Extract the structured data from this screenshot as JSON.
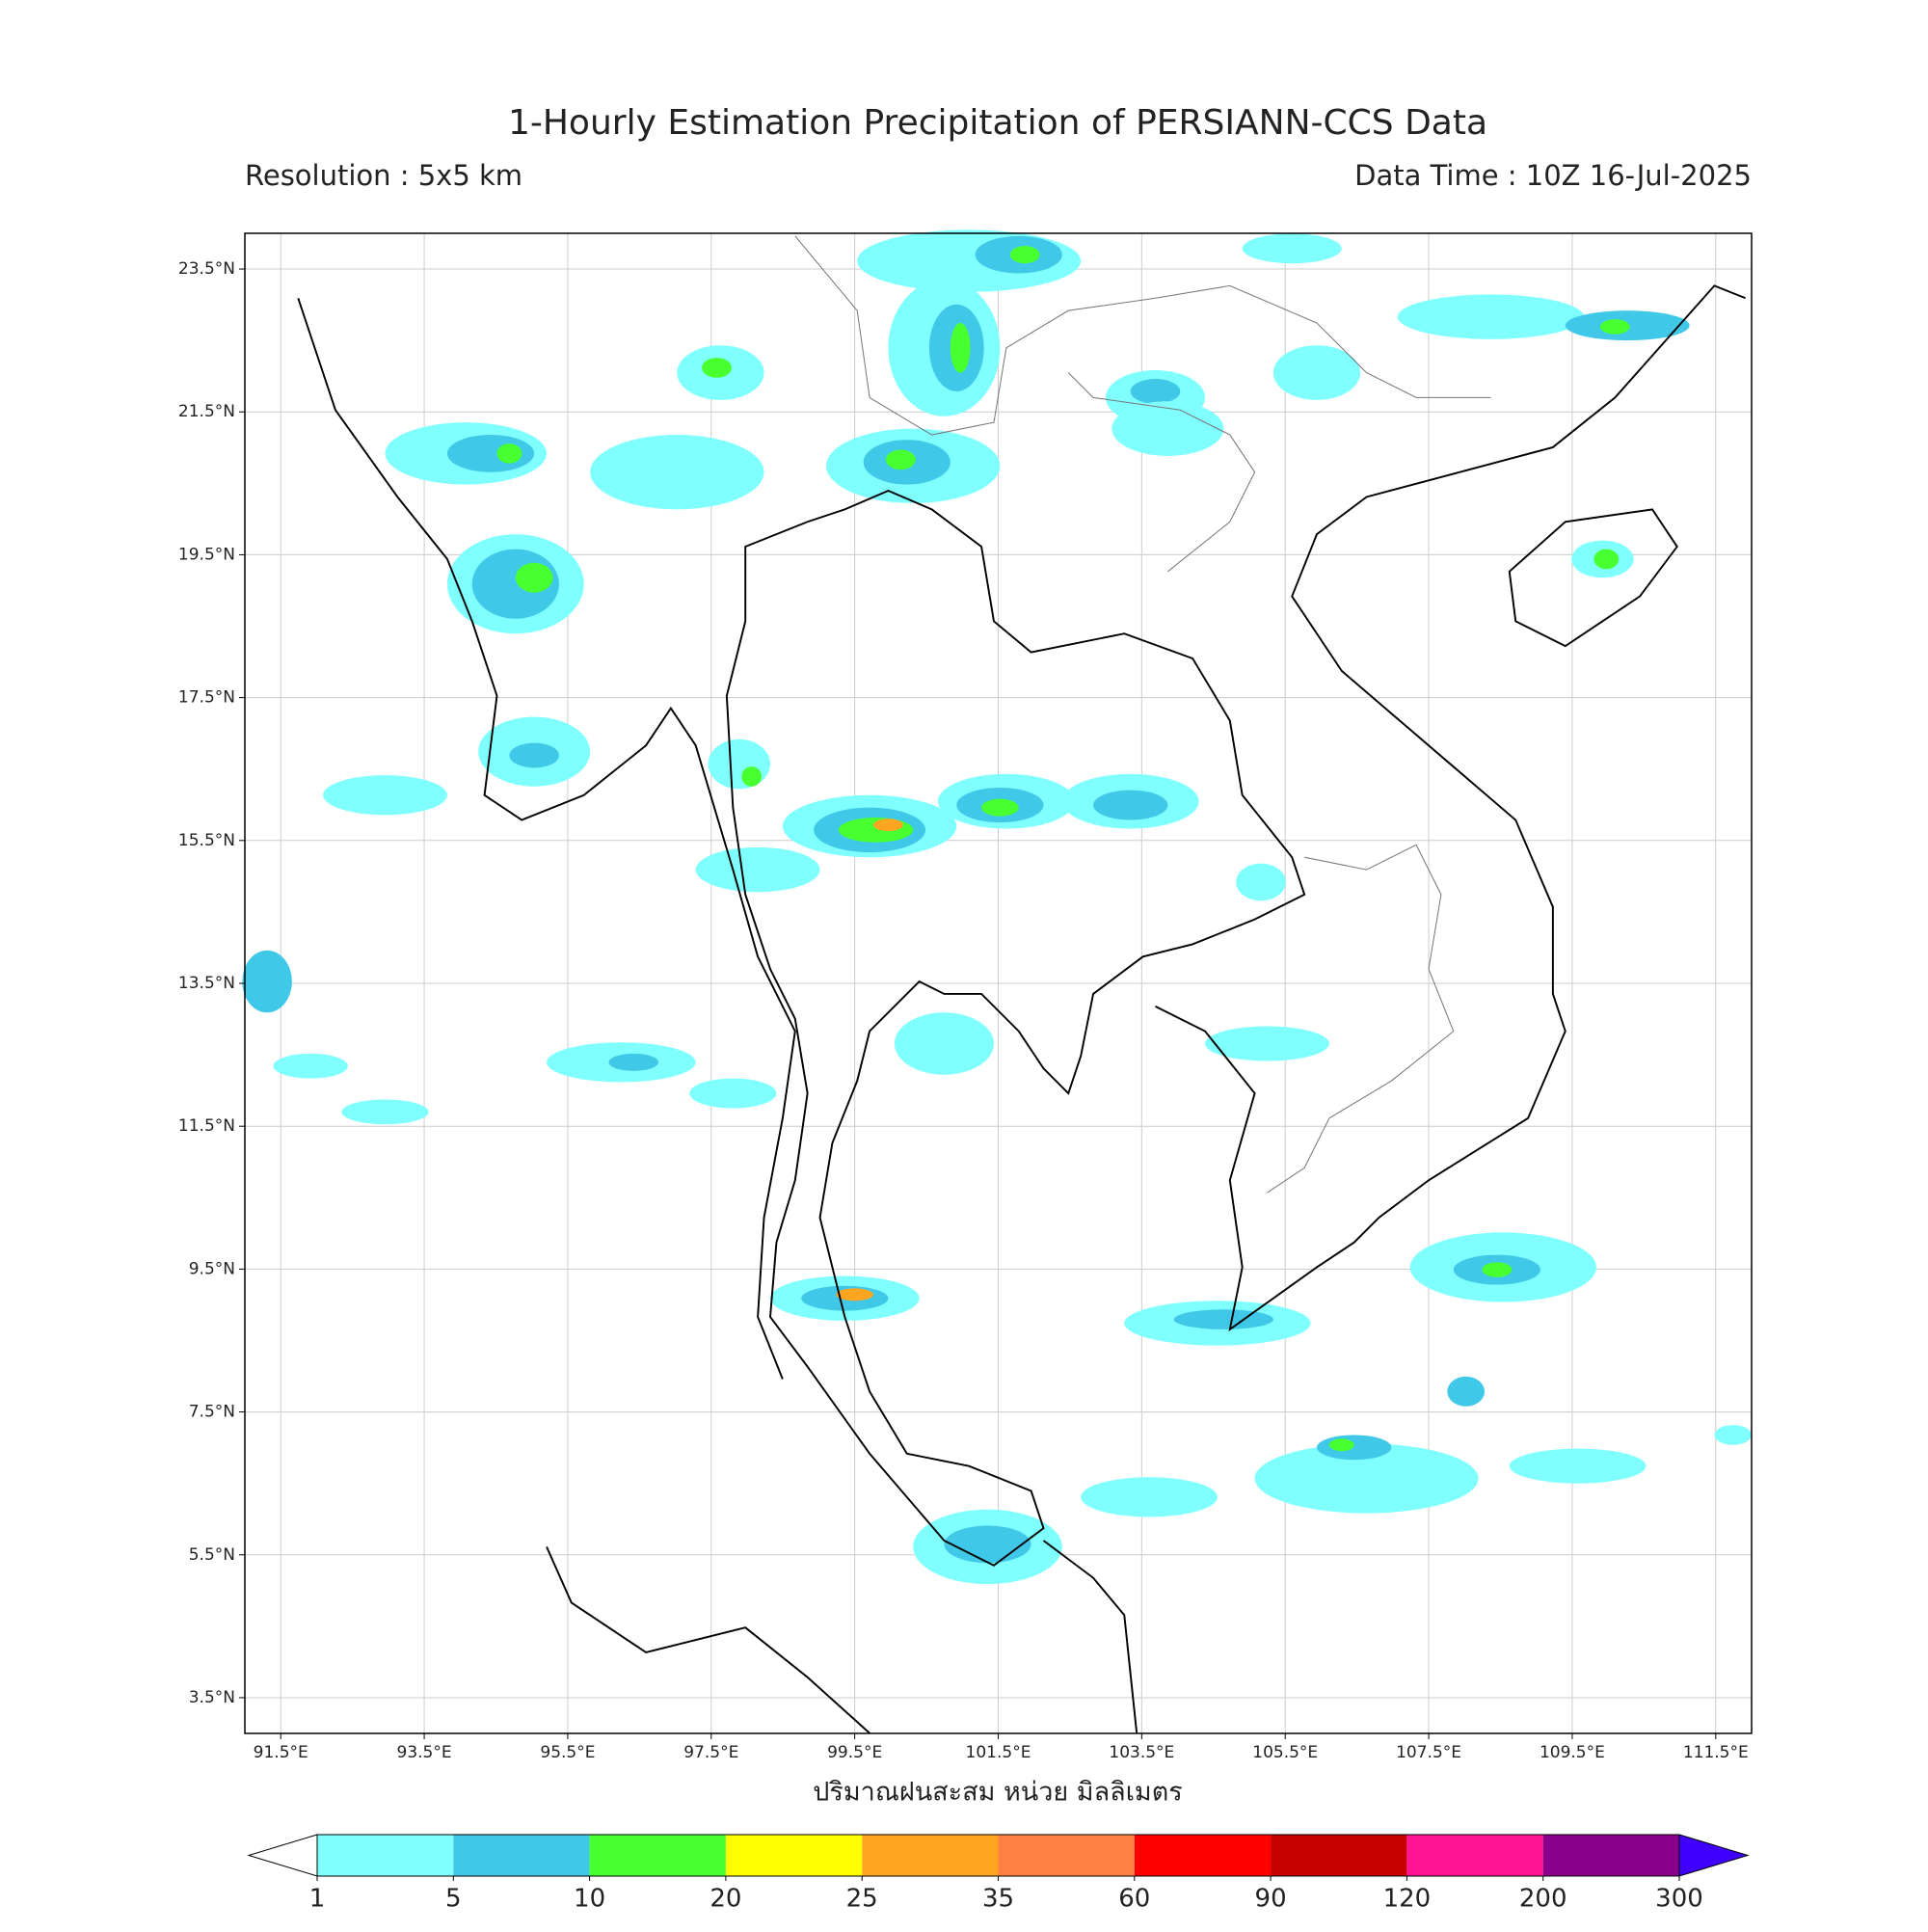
{
  "title": "1-Hourly Estimation Precipitation of PERSIANN-CCS Data",
  "subtitle_left": "Resolution : 5x5 km",
  "subtitle_right": "Data Time : 10Z 16-Jul-2025",
  "map": {
    "xlim": [
      91,
      112
    ],
    "ylim": [
      3,
      24
    ],
    "xticks": [
      {
        "value": 91.5,
        "label": "91.5°E"
      },
      {
        "value": 93.5,
        "label": "93.5°E"
      },
      {
        "value": 95.5,
        "label": "95.5°E"
      },
      {
        "value": 97.5,
        "label": "97.5°E"
      },
      {
        "value": 99.5,
        "label": "99.5°E"
      },
      {
        "value": 101.5,
        "label": "101.5°E"
      },
      {
        "value": 103.5,
        "label": "103.5°E"
      },
      {
        "value": 105.5,
        "label": "105.5°E"
      },
      {
        "value": 107.5,
        "label": "107.5°E"
      },
      {
        "value": 109.5,
        "label": "109.5°E"
      },
      {
        "value": 111.5,
        "label": "111.5°E"
      }
    ],
    "yticks": [
      {
        "value": 23.5,
        "label": "23.5°N"
      },
      {
        "value": 21.5,
        "label": "21.5°N"
      },
      {
        "value": 19.5,
        "label": "19.5°N"
      },
      {
        "value": 17.5,
        "label": "17.5°N"
      },
      {
        "value": 15.5,
        "label": "15.5°N"
      },
      {
        "value": 13.5,
        "label": "13.5°N"
      },
      {
        "value": 11.5,
        "label": "11.5°N"
      },
      {
        "value": 9.5,
        "label": "9.5°N"
      },
      {
        "value": 7.5,
        "label": "7.5°N"
      },
      {
        "value": 5.5,
        "label": "5.5°N"
      },
      {
        "value": 3.5,
        "label": "3.5°N"
      }
    ],
    "xlabel": "ปริมาณฝนสะสม หน่วย มิลลิเมตร",
    "grid": true
  },
  "colorbar": {
    "bounds": [
      1,
      5,
      10,
      20,
      25,
      35,
      60,
      90,
      120,
      200,
      300
    ],
    "colors": [
      "#80ffff",
      "#40c8e8",
      "#48ff30",
      "#ffff00",
      "#ffa520",
      "#ff8040",
      "#ff0000",
      "#c80000",
      "#ff1493",
      "#8b008b"
    ],
    "under_color": "#ffffff",
    "over_color": "#4000ff"
  }
}
